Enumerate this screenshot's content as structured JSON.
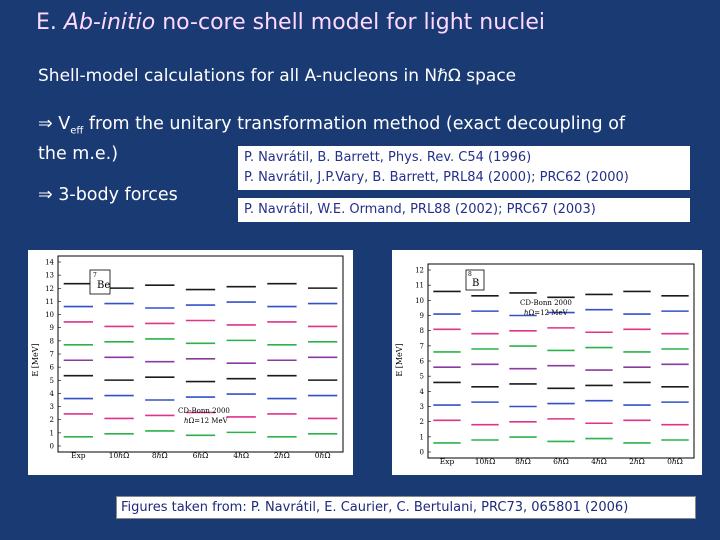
{
  "title": {
    "prefix": "E.",
    "italic": "Ab-initio",
    "rest": "no-core shell model for light nuclei"
  },
  "line1": "Shell-model calculations for all A-nucleons in NℏΩ space",
  "line2": {
    "arrow": "⇒",
    "veff_main": "V",
    "veff_sub": "eff",
    "text_a": " from the unitary transformation method (exact decoupling of",
    "text_b": "the m.e.)"
  },
  "line3": {
    "arrow": "⇒",
    "text": "3-body forces"
  },
  "refs": {
    "r1a": "P. Navrátil, B. Barrett,  Phys. Rev. C54 (1996)",
    "r1b": "P. Navrátil, J.P.Vary, B. Barrett,  PRL84 (2000); PRC62 (2000)",
    "r2": "P. Navrátil, W.E. Ormand,  PRL88 (2002); PRC67 (2003)"
  },
  "caption": "Figures taken from: P. Navrátil, E. Caurier, C. Bertulani, PRC73, 065801 (2006)",
  "fig1": {
    "nucleus_mass": "7",
    "nucleus_symbol": "Be",
    "ylabel": "E [MeV]",
    "yticks": [
      "0",
      "1",
      "2",
      "3",
      "4",
      "5",
      "6",
      "7",
      "8",
      "9",
      "10",
      "11",
      "12",
      "13",
      "14"
    ],
    "xticks": [
      "Exp",
      "10ℏΩ",
      "8ℏΩ",
      "6ℏΩ",
      "4ℏΩ",
      "2ℏΩ",
      "0ℏΩ"
    ],
    "legend_line1": "CD-Bonn 2000",
    "legend_line2": "ℏΩ=12 MeV"
  },
  "fig2": {
    "nucleus_mass": "8",
    "nucleus_symbol": "B",
    "ylabel": "E [MeV]",
    "yticks": [
      "0",
      "1",
      "2",
      "3",
      "4",
      "5",
      "6",
      "7",
      "8",
      "9",
      "10",
      "11",
      "12"
    ],
    "xticks": [
      "Exp",
      "10ℏΩ",
      "8ℏΩ",
      "6ℏΩ",
      "4ℏΩ",
      "2ℏΩ",
      "0ℏΩ"
    ],
    "legend_line1": "CD-Bonn 2000",
    "legend_line2": "ℏΩ=12 MeV"
  },
  "colors": {
    "background": "#1a3a73",
    "title": "#ffd9ff",
    "ref_text": "#24308a",
    "level_colors": [
      "#2ab34a",
      "#e0338a",
      "#3350c8",
      "#1a1a1a",
      "#8b3aa0"
    ]
  }
}
